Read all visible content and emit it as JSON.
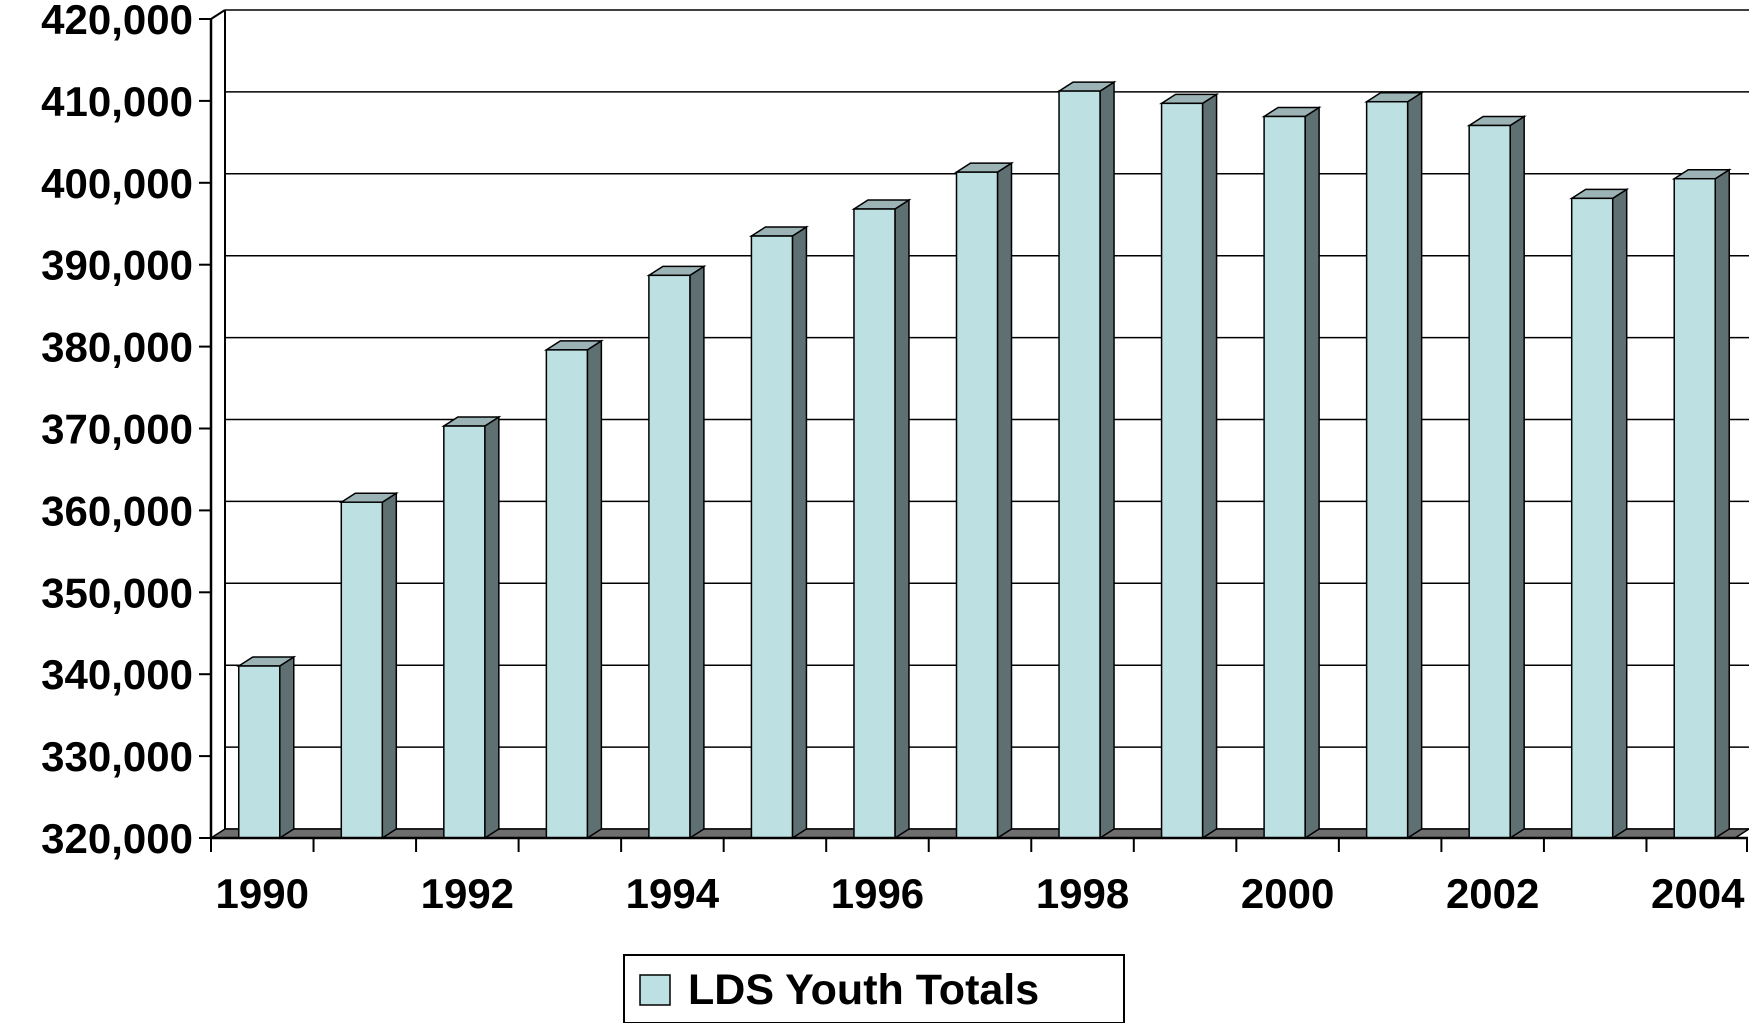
{
  "chart_data": {
    "type": "bar",
    "categories": [
      "1990",
      "1991",
      "1992",
      "1993",
      "1994",
      "1995",
      "1996",
      "1997",
      "1998",
      "1999",
      "2000",
      "2001",
      "2002",
      "2003",
      "2004"
    ],
    "x_tick_labels": [
      "1990",
      "",
      "1992",
      "",
      "1994",
      "",
      "1996",
      "",
      "1998",
      "",
      "2000",
      "",
      "2002",
      "",
      "2004"
    ],
    "series": [
      {
        "name": "LDS Youth Totals",
        "values": [
          341000,
          361000,
          370300,
          379600,
          388700,
          393500,
          396800,
          401300,
          411200,
          409700,
          408100,
          409900,
          407000,
          398100,
          400500
        ]
      }
    ],
    "ylim": [
      320000,
      420000
    ],
    "y_ticks": [
      "320,000",
      "330,000",
      "340,000",
      "350,000",
      "360,000",
      "370,000",
      "380,000",
      "390,000",
      "400,000",
      "410,000",
      "420,000"
    ],
    "title": "",
    "xlabel": "",
    "ylabel": "",
    "grid": true,
    "legend_position": "bottom-center",
    "style": "3d-column"
  },
  "colors": {
    "bar_front": "#bde0e3",
    "bar_side": "#5f7073",
    "bar_top": "#9bb3b5",
    "floor": "#6e6e6e",
    "gridline": "#000000",
    "background": "#ffffff"
  }
}
